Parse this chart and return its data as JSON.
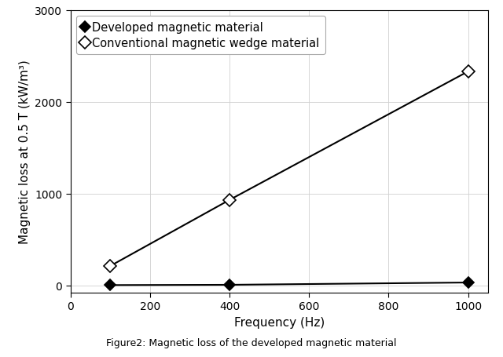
{
  "series": [
    {
      "label": "Developed magnetic material",
      "x": [
        100,
        400,
        1000
      ],
      "y": [
        2,
        5,
        30
      ],
      "marker": "D",
      "marker_size": 7,
      "marker_facecolor": "black",
      "marker_edgecolor": "black",
      "linecolor": "black",
      "linewidth": 1.5,
      "filled": true
    },
    {
      "label": "Conventional magnetic wedge material",
      "x": [
        100,
        400,
        1000
      ],
      "y": [
        210,
        930,
        2330
      ],
      "marker": "D",
      "marker_size": 8,
      "marker_facecolor": "white",
      "marker_edgecolor": "black",
      "linecolor": "black",
      "linewidth": 1.5,
      "filled": false
    }
  ],
  "xlabel": "Frequency (Hz)",
  "ylabel": "Magnetic loss at 0.5 T (kW/m³)",
  "xlim": [
    0,
    1050
  ],
  "ylim": [
    -80,
    3000
  ],
  "xticks": [
    0,
    200,
    400,
    600,
    800,
    1000
  ],
  "yticks": [
    0,
    1000,
    2000,
    3000
  ],
  "grid": true,
  "grid_color": "#d0d0d0",
  "grid_linewidth": 0.6,
  "background_color": "#ffffff",
  "caption": "Figure2: Magnetic loss of the developed magnetic material",
  "caption_fontsize": 9,
  "axis_label_fontsize": 11,
  "tick_label_fontsize": 10,
  "legend_fontsize": 10.5,
  "legend_loc": "upper left"
}
